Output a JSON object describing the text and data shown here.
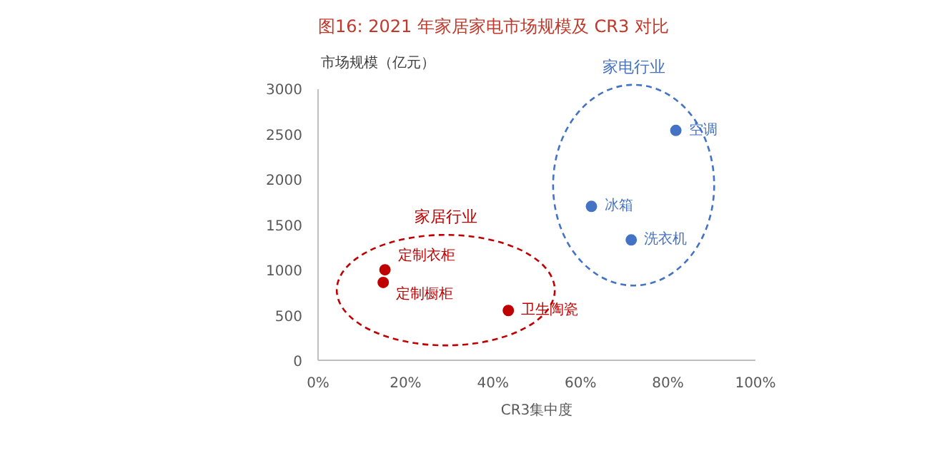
{
  "chart_data": {
    "type": "scatter",
    "title": "图16:    2021 年家居家电市场规模及 CR3 对比",
    "xlabel": "CR3集中度",
    "ylabel": "市场规模（亿元）",
    "series": [
      {
        "name": "家居行业",
        "color": "#c00000",
        "x": [
          15.3,
          14.9,
          43.5
        ],
        "values": [
          1000,
          860,
          550
        ]
      },
      {
        "name": "家电行业",
        "color": "#4472c4",
        "x": [
          81.8,
          62.5,
          71.6
        ],
        "values": [
          2540,
          1700,
          1330
        ]
      }
    ],
    "annotations": [
      {
        "text": "定制衣柜",
        "x": 15.3,
        "y": 1000
      },
      {
        "text": "定制橱柜",
        "x": 14.9,
        "y": 860
      },
      {
        "text": "卫生陶瓷",
        "x": 43.5,
        "y": 550
      },
      {
        "text": "空调",
        "x": 81.8,
        "y": 2540
      },
      {
        "text": "冰箱",
        "x": 62.5,
        "y": 1700
      },
      {
        "text": "洗衣机",
        "x": 71.6,
        "y": 1330
      }
    ],
    "xlim": [
      0,
      100
    ],
    "ylim": [
      0,
      3000
    ],
    "xticks": [
      {
        "value": 0,
        "label": "0%"
      },
      {
        "value": 20,
        "label": "20%"
      },
      {
        "value": 40,
        "label": "40%"
      },
      {
        "value": 60,
        "label": "60%"
      },
      {
        "value": 80,
        "label": "80%"
      },
      {
        "value": 100,
        "label": "100%"
      }
    ],
    "yticks": [
      0,
      500,
      1000,
      1500,
      2000,
      2500,
      3000
    ],
    "grid": false,
    "legend": false,
    "marker": "circle"
  }
}
